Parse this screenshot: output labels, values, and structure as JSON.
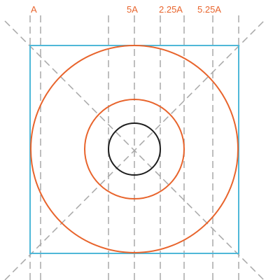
{
  "labels": {
    "a": "A",
    "five_a": "5A",
    "two_point_two_five_a": "2.25A",
    "five_point_two_five_a": "5.25A"
  },
  "colors": {
    "background": "#ffffff",
    "guide_line": "#a8a8a8",
    "square": "#4fb8d8",
    "orange": "#e8642c",
    "inner_circle": "#1e1e1e",
    "label_text": "#e8642c"
  },
  "elements": {
    "vertical_guides": 8,
    "diagonal_guides": 2,
    "square": 1,
    "circles": 3
  }
}
